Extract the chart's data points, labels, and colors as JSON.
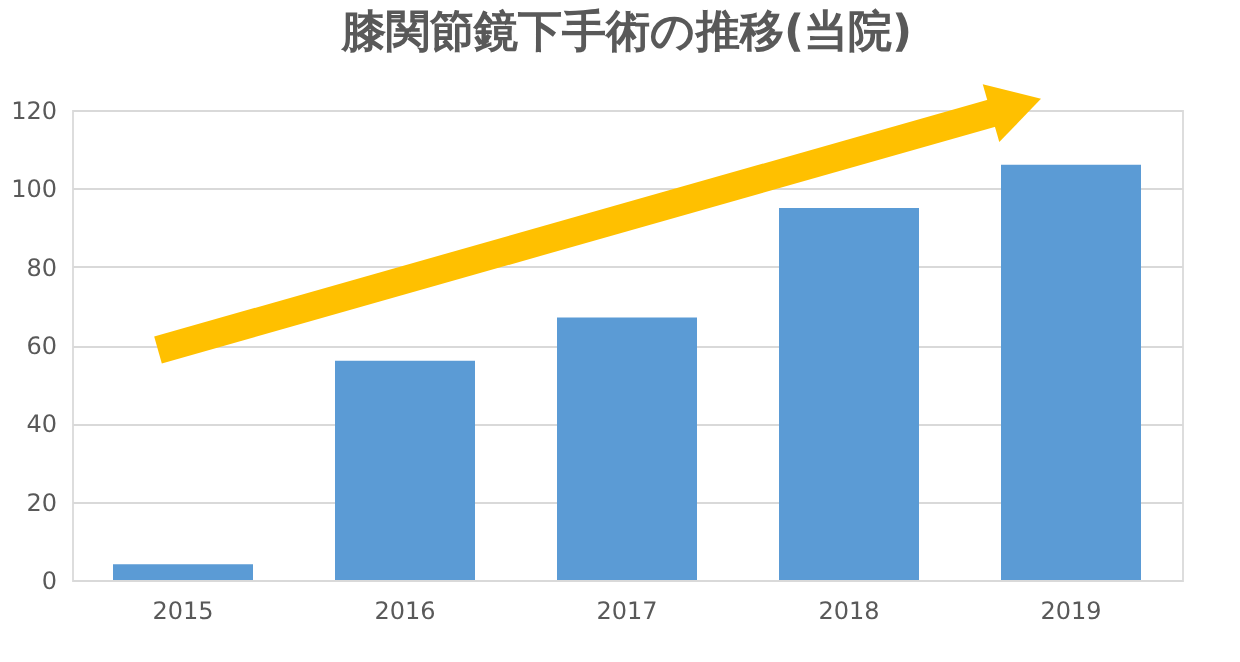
{
  "chart_data": {
    "type": "bar",
    "title": "膝関節鏡下手術の推移(当院)",
    "categories": [
      "2015",
      "2016",
      "2017",
      "2018",
      "2019"
    ],
    "values": [
      4,
      56,
      67,
      95,
      106
    ],
    "color": "#5b9bd5",
    "ylim": [
      0,
      120
    ],
    "yticks": [
      0,
      20,
      40,
      60,
      80,
      100,
      120
    ],
    "grid": "y"
  }
}
